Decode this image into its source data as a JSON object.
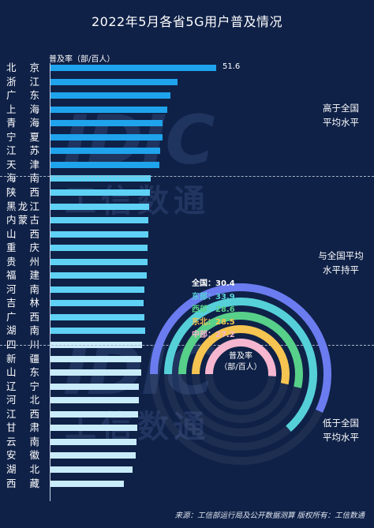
{
  "title": "2022年5月各省5G用户普及情况",
  "y_axis_label": "普及率（部/百人）",
  "highlight_value": "51.6",
  "zones": {
    "above": [
      "高于全国",
      "平均水平"
    ],
    "equal": [
      "与全国平均",
      "水平持平"
    ],
    "below": [
      "低于全国",
      "平均水平"
    ]
  },
  "legend": [
    {
      "label": "全国：",
      "value": "30.4",
      "color": "#6b7cf0"
    },
    {
      "label": "东部：",
      "value": "33.9",
      "color": "#56d0d8"
    },
    {
      "label": "西部：",
      "value": "28.6",
      "color": "#57d08a"
    },
    {
      "label": "东北：",
      "value": "28.5",
      "color": "#f5c451"
    },
    {
      "label": "中部：",
      "value": "27.2",
      "color": "#f6b6cf"
    }
  ],
  "radial_center_label": [
    "普及率",
    "（部/百人）"
  ],
  "watermark": {
    "logo": "IDIC",
    "text": "工信数通"
  },
  "source": "来源：工信部运行局及公开数据测算   版权所有：工信数通",
  "chart_data": {
    "type": "bar",
    "orientation": "horizontal",
    "title": "2022年5月各省5G用户普及情况",
    "xlabel": "普及率（部/百人）",
    "categories": [
      "北京",
      "浙江",
      "广东",
      "上海",
      "青海",
      "宁夏",
      "江苏",
      "天津",
      "海南",
      "陕西",
      "黑龙江",
      "内蒙古",
      "山西",
      "重庆",
      "贵州",
      "福建",
      "河南",
      "吉林",
      "广西",
      "湖南",
      "四川",
      "新疆",
      "山东",
      "辽宁",
      "河北",
      "江西",
      "甘肃",
      "云南",
      "安徽",
      "湖北",
      "西藏"
    ],
    "values": [
      51.6,
      39.5,
      37.3,
      36.4,
      35.0,
      34.8,
      34.1,
      33.8,
      31.1,
      30.9,
      30.6,
      30.5,
      30.4,
      30.3,
      30.2,
      30.0,
      29.2,
      29.1,
      29.3,
      29.4,
      28.4,
      28.3,
      28.2,
      27.6,
      27.5,
      27.3,
      27.1,
      26.9,
      26.5,
      25.6,
      22.9
    ],
    "xlim": [
      0,
      64
    ],
    "radial": {
      "type": "radial-bar",
      "categories": [
        "全国",
        "东部",
        "西部",
        "东北",
        "中部"
      ],
      "values": [
        30.4,
        33.9,
        28.6,
        28.5,
        27.2
      ]
    }
  }
}
